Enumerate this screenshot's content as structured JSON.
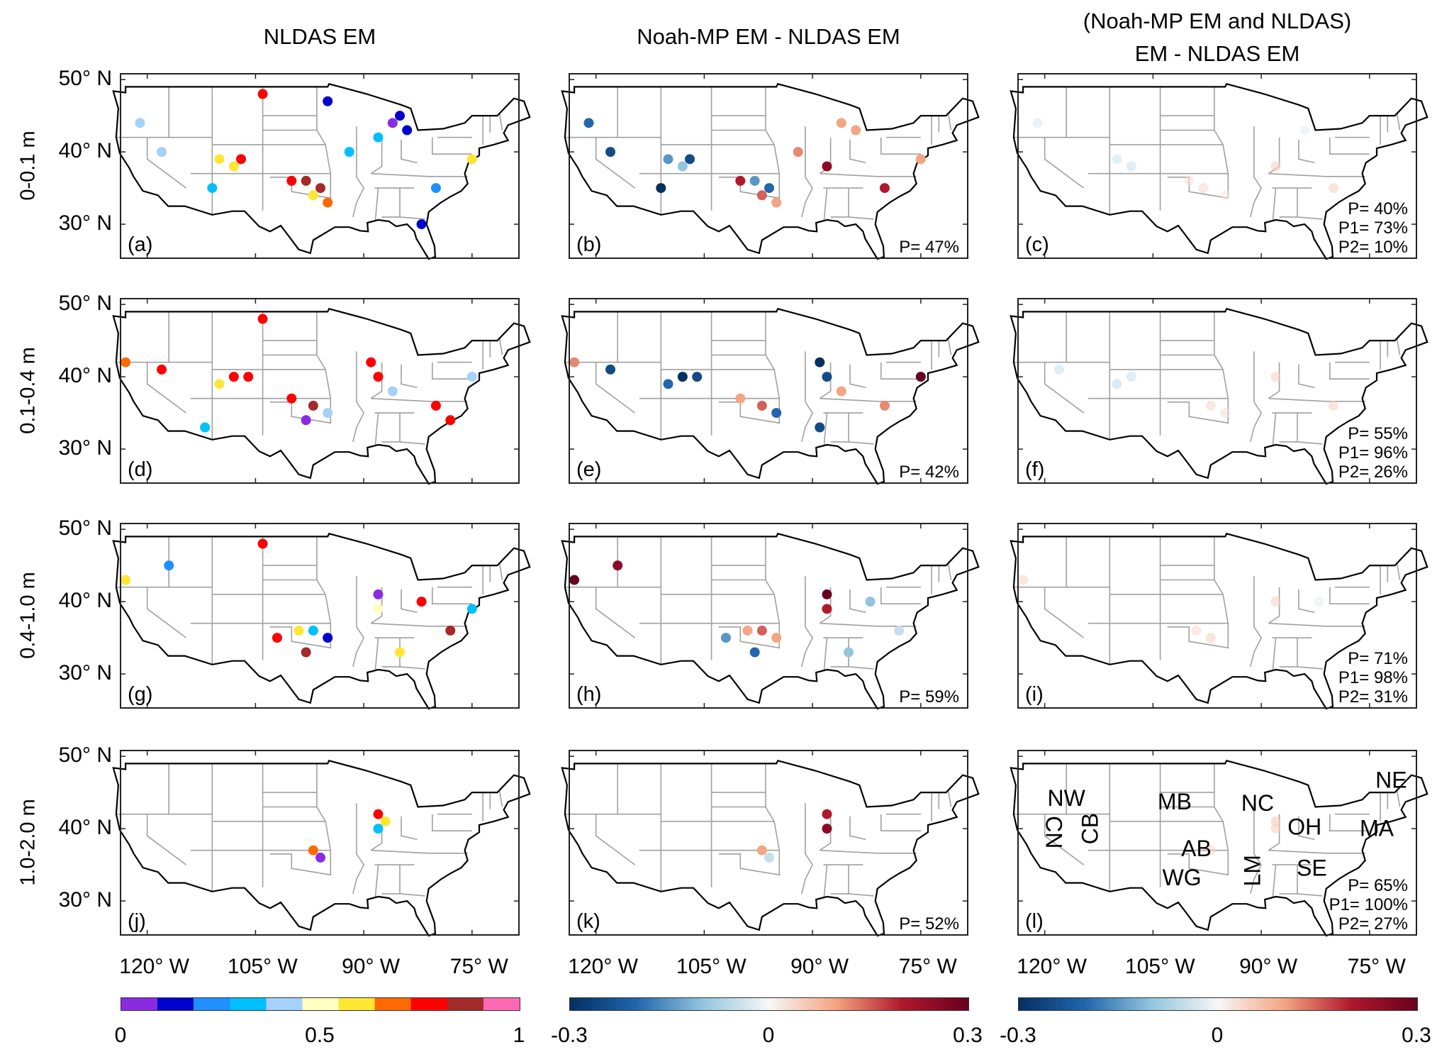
{
  "columns": [
    {
      "title_lines": [
        "NLDAS EM"
      ],
      "colorbar": {
        "type": "discrete",
        "ticks": [
          "0",
          "0.5",
          "1"
        ],
        "colors": [
          "#8a2be2",
          "#0000cd",
          "#1e90ff",
          "#00bfff",
          "#a6d1fa",
          "#ffffc0",
          "#ffe633",
          "#ff6a00",
          "#ff0000",
          "#a52a2a",
          "#ff69b4"
        ],
        "range": [
          0,
          1
        ]
      }
    },
    {
      "title_lines": [
        "Noah-MP EM - NLDAS EM"
      ],
      "colorbar": {
        "type": "diverging",
        "ticks": [
          "-0.3",
          "0",
          "0.3"
        ],
        "colors": [
          "#053061",
          "#2166ac",
          "#92c5de",
          "#f7f7f7",
          "#f4a582",
          "#b2182b",
          "#67001f"
        ],
        "range": [
          -0.3,
          0.3
        ]
      }
    },
    {
      "title_lines": [
        "(Noah-MP EM and NLDAS)",
        "EM - NLDAS EM"
      ],
      "colorbar": {
        "type": "diverging",
        "ticks": [
          "-0.3",
          "0",
          "0.3"
        ],
        "colors": [
          "#053061",
          "#2166ac",
          "#92c5de",
          "#f7f7f7",
          "#f4a582",
          "#b2182b",
          "#67001f"
        ],
        "range": [
          -0.3,
          0.3
        ]
      }
    }
  ],
  "rows": [
    {
      "label": "0-0.1 m",
      "panels": [
        {
          "letter": "(a)",
          "stats": [],
          "stations": [
            [
              -121,
              44,
              0.4
            ],
            [
              -118,
              40,
              0.4
            ],
            [
              -110,
              39,
              0.6
            ],
            [
              -108,
              38,
              0.55
            ],
            [
              -107,
              39,
              0.8
            ],
            [
              -111,
              35,
              0.35
            ],
            [
              -100,
              36,
              0.8
            ],
            [
              -98,
              36,
              0.85
            ],
            [
              -96,
              35,
              0.9
            ],
            [
              -97,
              34,
              0.6
            ],
            [
              -95,
              33,
              0.7
            ],
            [
              -92,
              40,
              0.35
            ],
            [
              -86,
              44,
              0.05
            ],
            [
              -84,
              43,
              0.15
            ],
            [
              -85,
              45,
              0.1
            ],
            [
              -88,
              42,
              0.3
            ],
            [
              -80,
              35,
              0.2
            ],
            [
              -75,
              39,
              0.55
            ],
            [
              -104,
              48,
              0.8
            ],
            [
              -95,
              47,
              0.1
            ],
            [
              -82,
              30,
              0.1
            ]
          ]
        },
        {
          "letter": "(b)",
          "stats": [
            "P=  47%"
          ],
          "stations": [
            [
              -121,
              44,
              -0.2
            ],
            [
              -118,
              40,
              -0.25
            ],
            [
              -110,
              39,
              -0.15
            ],
            [
              -108,
              38,
              -0.1
            ],
            [
              -107,
              39,
              -0.25
            ],
            [
              -111,
              35,
              -0.3
            ],
            [
              -100,
              36,
              0.2
            ],
            [
              -98,
              36,
              -0.15
            ],
            [
              -96,
              35,
              -0.2
            ],
            [
              -97,
              34,
              0.15
            ],
            [
              -95,
              33,
              0.1
            ],
            [
              -92,
              40,
              0.12
            ],
            [
              -86,
              44,
              0.1
            ],
            [
              -84,
              43,
              0.1
            ],
            [
              -88,
              38,
              0.25
            ],
            [
              -80,
              35,
              0.2
            ],
            [
              -75,
              39,
              0.1
            ]
          ]
        },
        {
          "letter": "(c)",
          "stats": [
            "P=  40%",
            "P1=  73%",
            "P2=  10%"
          ],
          "stations": [
            [
              -121,
              44,
              -0.03
            ],
            [
              -110,
              39,
              -0.04
            ],
            [
              -108,
              38,
              -0.05
            ],
            [
              -100,
              36,
              0.03
            ],
            [
              -98,
              35,
              0.04
            ],
            [
              -95,
              34,
              0.02
            ],
            [
              -88,
              38,
              0.05
            ],
            [
              -84,
              43,
              -0.02
            ],
            [
              -80,
              35,
              0.05
            ]
          ]
        }
      ]
    },
    {
      "label": "0.1-0.4 m",
      "panels": [
        {
          "letter": "(d)",
          "stats": [],
          "stations": [
            [
              -123,
              42,
              0.7
            ],
            [
              -118,
              41,
              0.8
            ],
            [
              -110,
              39,
              0.6
            ],
            [
              -108,
              40,
              0.75
            ],
            [
              -106,
              40,
              0.8
            ],
            [
              -104,
              48,
              0.75
            ],
            [
              -100,
              37,
              0.8
            ],
            [
              -97,
              36,
              0.85
            ],
            [
              -95,
              35,
              0.4
            ],
            [
              -98,
              34,
              0.05
            ],
            [
              -88,
              40,
              0.8
            ],
            [
              -89,
              42,
              0.75
            ],
            [
              -86,
              38,
              0.4
            ],
            [
              -80,
              36,
              0.8
            ],
            [
              -78,
              34,
              0.8
            ],
            [
              -75,
              40,
              0.4
            ],
            [
              -112,
              33,
              0.35
            ]
          ]
        },
        {
          "letter": "(e)",
          "stats": [
            "P=  42%"
          ],
          "stations": [
            [
              -123,
              42,
              0.12
            ],
            [
              -118,
              41,
              -0.25
            ],
            [
              -110,
              39,
              -0.2
            ],
            [
              -108,
              40,
              -0.3
            ],
            [
              -106,
              40,
              -0.25
            ],
            [
              -100,
              37,
              0.1
            ],
            [
              -97,
              36,
              0.15
            ],
            [
              -95,
              35,
              -0.2
            ],
            [
              -88,
              40,
              -0.25
            ],
            [
              -89,
              42,
              -0.3
            ],
            [
              -86,
              38,
              0.1
            ],
            [
              -80,
              36,
              0.12
            ],
            [
              -75,
              40,
              0.3
            ],
            [
              -89,
              33,
              -0.25
            ]
          ]
        },
        {
          "letter": "(f)",
          "stats": [
            "P=  55%",
            "P1=  96%",
            "P2=  26%"
          ],
          "stations": [
            [
              -118,
              41,
              -0.05
            ],
            [
              -110,
              39,
              -0.06
            ],
            [
              -108,
              40,
              -0.05
            ],
            [
              -97,
              36,
              0.04
            ],
            [
              -95,
              35,
              0.03
            ],
            [
              -88,
              40,
              0.05
            ],
            [
              -80,
              36,
              0.05
            ]
          ]
        }
      ]
    },
    {
      "label": "0.4-1.0 m",
      "panels": [
        {
          "letter": "(g)",
          "stats": [],
          "stations": [
            [
              -123,
              43,
              0.6
            ],
            [
              -117,
              45,
              0.2
            ],
            [
              -104,
              48,
              0.75
            ],
            [
              -102,
              35,
              0.8
            ],
            [
              -99,
              36,
              0.6
            ],
            [
              -97,
              36,
              0.3
            ],
            [
              -95,
              35,
              0.1
            ],
            [
              -98,
              33,
              0.9
            ],
            [
              -88,
              41,
              0.0
            ],
            [
              -88,
              39,
              0.5
            ],
            [
              -82,
              40,
              0.8
            ],
            [
              -78,
              36,
              0.9
            ],
            [
              -75,
              39,
              0.3
            ],
            [
              -85,
              33,
              0.55
            ]
          ]
        },
        {
          "letter": "(h)",
          "stats": [
            "P=  59%"
          ],
          "stations": [
            [
              -123,
              43,
              0.3
            ],
            [
              -117,
              45,
              0.25
            ],
            [
              -102,
              35,
              -0.15
            ],
            [
              -99,
              36,
              0.1
            ],
            [
              -97,
              36,
              0.15
            ],
            [
              -95,
              35,
              0.1
            ],
            [
              -98,
              33,
              -0.2
            ],
            [
              -88,
              41,
              0.3
            ],
            [
              -88,
              39,
              0.2
            ],
            [
              -82,
              40,
              -0.1
            ],
            [
              -78,
              36,
              -0.05
            ],
            [
              -85,
              33,
              -0.1
            ]
          ]
        },
        {
          "letter": "(i)",
          "stats": [
            "P=  71%",
            "P1=  98%",
            "P2=  31%"
          ],
          "stations": [
            [
              -123,
              43,
              0.05
            ],
            [
              -99,
              36,
              0.04
            ],
            [
              -97,
              35,
              0.05
            ],
            [
              -88,
              40,
              0.05
            ],
            [
              -82,
              40,
              -0.02
            ]
          ]
        }
      ]
    },
    {
      "label": "1.0-2.0 m",
      "panels": [
        {
          "letter": "(j)",
          "stats": [],
          "stations": [
            [
              -97,
              37,
              0.7
            ],
            [
              -96,
              36,
              0.05
            ],
            [
              -88,
              42,
              0.8
            ],
            [
              -88,
              40,
              0.3
            ],
            [
              -87,
              41,
              0.6
            ]
          ]
        },
        {
          "letter": "(k)",
          "stats": [
            "P=  52%"
          ],
          "stations": [
            [
              -97,
              37,
              0.1
            ],
            [
              -96,
              36,
              -0.05
            ],
            [
              -88,
              42,
              0.2
            ],
            [
              -88,
              40,
              0.25
            ]
          ]
        },
        {
          "letter": "(l)",
          "stats": [
            "P=  65%",
            "P1=  100%",
            "P2=  27%"
          ],
          "stations": [
            [
              -97,
              37,
              0.04
            ],
            [
              -88,
              41,
              0.06
            ],
            [
              -88,
              40,
              0.05
            ]
          ],
          "regions": [
            {
              "name": "NW",
              "lon": -117,
              "lat": 44,
              "rot": 0
            },
            {
              "name": "CN",
              "lon": -119,
              "lat": 39.5,
              "rot": 90
            },
            {
              "name": "CB",
              "lon": -113.5,
              "lat": 40,
              "rot": -90
            },
            {
              "name": "MB",
              "lon": -102,
              "lat": 43.5,
              "rot": 0
            },
            {
              "name": "NC",
              "lon": -90.5,
              "lat": 43.3,
              "rot": 0
            },
            {
              "name": "OH",
              "lon": -84,
              "lat": 40,
              "rot": 0
            },
            {
              "name": "AB",
              "lon": -99,
              "lat": 37,
              "rot": 0
            },
            {
              "name": "WG",
              "lon": -101,
              "lat": 33,
              "rot": 0
            },
            {
              "name": "LM",
              "lon": -91,
              "lat": 34.2,
              "rot": -90
            },
            {
              "name": "SE",
              "lon": -83,
              "lat": 34.3,
              "rot": 0
            },
            {
              "name": "MA",
              "lon": -74,
              "lat": 39.8,
              "rot": 0
            },
            {
              "name": "NE",
              "lon": -72,
              "lat": 46.5,
              "rot": 0
            }
          ]
        }
      ]
    }
  ],
  "lat_labels": [
    "50° N",
    "40° N",
    "30° N"
  ],
  "lon_labels": [
    "120° W",
    "105° W",
    "90° W",
    "75° W"
  ]
}
